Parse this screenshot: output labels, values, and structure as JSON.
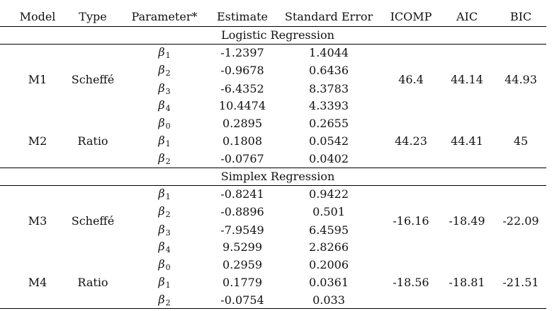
{
  "table": {
    "headers": [
      "Model",
      "Type",
      "Parameter*",
      "Estimate",
      "Standard Error",
      "ICOMP",
      "AIC",
      "BIC"
    ],
    "sections": [
      {
        "title": "Logistic Regression",
        "models": [
          {
            "model": "M1",
            "type": "Scheffé",
            "icomp": "46.4",
            "aic": "44.14",
            "bic": "44.93",
            "rows": [
              {
                "sym": "β",
                "sub": "1",
                "est": "-1.2397",
                "se": "1.4044"
              },
              {
                "sym": "β",
                "sub": "2",
                "est": "-0.9678",
                "se": "0.6436"
              },
              {
                "sym": "β",
                "sub": "3",
                "est": "-6.4352",
                "se": "8.3783"
              },
              {
                "sym": "β",
                "sub": "4",
                "est": "10.4474",
                "se": "4.3393"
              }
            ]
          },
          {
            "model": "M2",
            "type": "Ratio",
            "icomp": "44.23",
            "aic": "44.41",
            "bic": "45",
            "rows": [
              {
                "sym": "β",
                "sub": "0",
                "est": "0.2895",
                "se": "0.2655"
              },
              {
                "sym": "β",
                "sub": "1",
                "est": "0.1808",
                "se": "0.0542"
              },
              {
                "sym": "β",
                "sub": "2",
                "est": "-0.0767",
                "se": "0.0402"
              }
            ]
          }
        ]
      },
      {
        "title": "Simplex Regression",
        "models": [
          {
            "model": "M3",
            "type": "Scheffé",
            "icomp": "-16.16",
            "aic": "-18.49",
            "bic": "-22.09",
            "rows": [
              {
                "sym": "β",
                "sub": "1",
                "est": "-0.8241",
                "se": "0.9422"
              },
              {
                "sym": "β",
                "sub": "2",
                "est": "-0.8896",
                "se": "0.501"
              },
              {
                "sym": "β",
                "sub": "3",
                "est": "-7.9549",
                "se": "6.4595"
              },
              {
                "sym": "β",
                "sub": "4",
                "est": "9.5299",
                "se": "2.8266"
              }
            ]
          },
          {
            "model": "M4",
            "type": "Ratio",
            "icomp": "-18.56",
            "aic": "-18.81",
            "bic": "-21.51",
            "rows": [
              {
                "sym": "β",
                "sub": "0",
                "est": "0.2959",
                "se": "0.2006"
              },
              {
                "sym": "β",
                "sub": "1",
                "est": "0.1779",
                "se": "0.0361"
              },
              {
                "sym": "β",
                "sub": "2",
                "est": "-0.0754",
                "se": "0.033"
              }
            ]
          }
        ]
      }
    ]
  }
}
